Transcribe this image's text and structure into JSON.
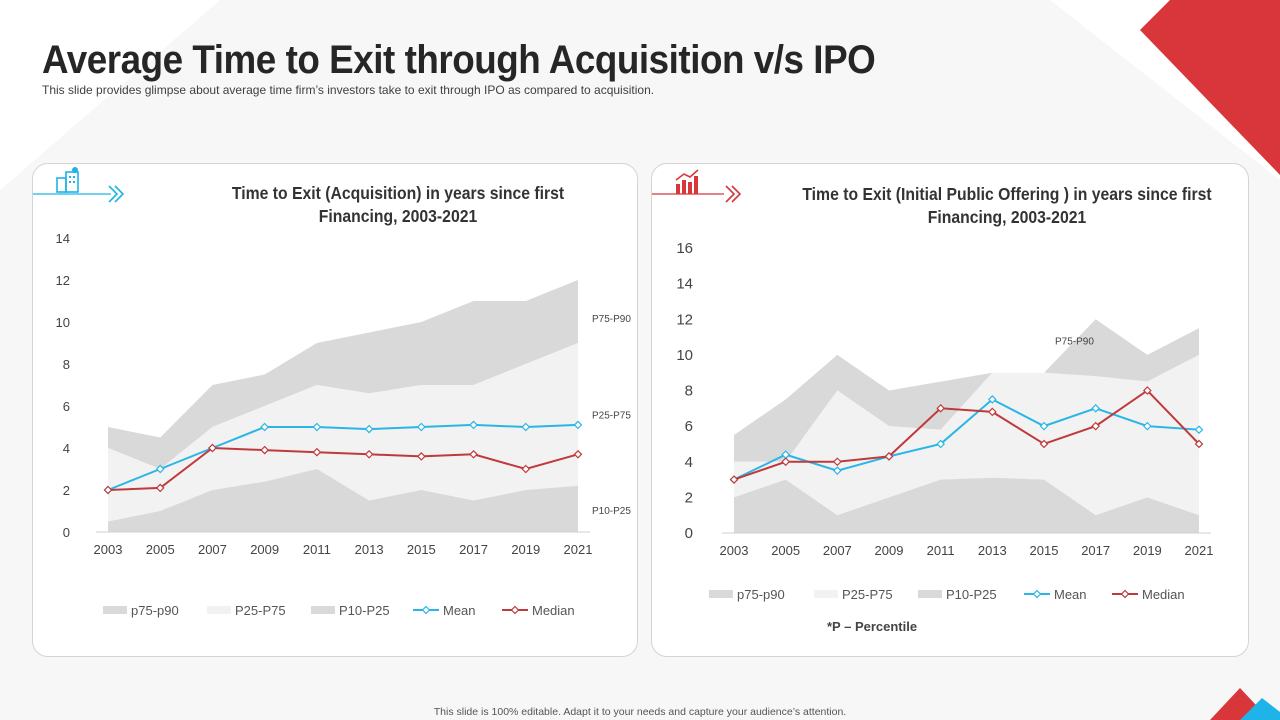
{
  "slide": {
    "title": "Average Time to Exit through Acquisition v/s IPO",
    "subtitle": "This slide provides glimpse about average time firm’s investors take to exit through IPO as compared to acquisition.",
    "footer": "This slide is 100% editable. Adapt it to your needs and capture your audience’s attention.",
    "percentile_note": "*P – Percentile"
  },
  "colors": {
    "accent_red": "#d9363b",
    "accent_blue": "#1fb4e8",
    "mean": "#29b6e6",
    "median": "#c0393b",
    "p75_p90": "#d9d9d9",
    "p25_p75": "#f2f2f2",
    "p10_p25": "#d9d9d9"
  },
  "icons": {
    "acquisition": "building-dollar-icon",
    "ipo": "growth-chart-icon",
    "arrow": "chevron-arrow-icon"
  },
  "chart_data": [
    {
      "type": "area",
      "title": "Time to Exit (Acquisition) in years since first Financing, 2003-2021",
      "x": [
        "2003",
        "2005",
        "2007",
        "2009",
        "2011",
        "2013",
        "2015",
        "2017",
        "2019",
        "2021"
      ],
      "ylim": [
        0,
        14
      ],
      "yticks": [
        0,
        2,
        4,
        6,
        8,
        10,
        12,
        14
      ],
      "series": [
        {
          "name": "p75-p90",
          "kind": "band",
          "lower": [
            4,
            3,
            5,
            6,
            7,
            6.6,
            7,
            7,
            8,
            9
          ],
          "upper": [
            5,
            4.5,
            7,
            7.5,
            9,
            9.5,
            10,
            11,
            11,
            12
          ]
        },
        {
          "name": "P25-P75",
          "kind": "band",
          "lower": [
            0.5,
            1,
            2,
            2.4,
            3,
            1.5,
            2,
            1.5,
            2,
            2.2
          ],
          "upper": [
            4,
            3,
            5,
            6,
            7,
            6.6,
            7,
            7,
            8,
            9
          ]
        },
        {
          "name": "P10-P25",
          "kind": "band",
          "lower": [
            0,
            0,
            0,
            0,
            0,
            0,
            0,
            0,
            0,
            0
          ],
          "upper": [
            0.5,
            1,
            2,
            2.4,
            3,
            1.5,
            2,
            1.5,
            2,
            2.2
          ]
        },
        {
          "name": "Mean",
          "kind": "line",
          "values": [
            2,
            3,
            4,
            5,
            5,
            4.9,
            5,
            5.1,
            5,
            5.1
          ]
        },
        {
          "name": "Median",
          "kind": "line",
          "values": [
            2,
            2.1,
            4,
            3.9,
            3.8,
            3.7,
            3.6,
            3.7,
            3,
            3.7
          ]
        }
      ],
      "band_labels": [
        {
          "text": "P75-P90",
          "y": 10.2
        },
        {
          "text": "P25-P75",
          "y": 5.6
        },
        {
          "text": "P10-P25",
          "y": 1.05
        }
      ],
      "legend": [
        "p75-p90",
        "P25-P75",
        "P10-P25",
        "Mean",
        "Median"
      ]
    },
    {
      "type": "area",
      "title": "Time to Exit (Initial Public Offering ) in years since first Financing, 2003-2021",
      "x": [
        "2003",
        "2005",
        "2007",
        "2009",
        "2011",
        "2013",
        "2015",
        "2017",
        "2019",
        "2021"
      ],
      "ylim": [
        0,
        16
      ],
      "yticks": [
        0,
        2,
        4,
        6,
        8,
        10,
        12,
        14,
        16
      ],
      "series": [
        {
          "name": "p75-p90",
          "kind": "band",
          "lower": [
            4,
            4,
            8,
            6,
            5.8,
            9,
            9,
            8.8,
            8.5,
            10
          ],
          "upper": [
            5.5,
            7.5,
            10,
            8,
            8.5,
            9,
            9,
            12,
            10,
            11.5
          ]
        },
        {
          "name": "P25-P75",
          "kind": "band",
          "lower": [
            2,
            3,
            1,
            2,
            3,
            3.1,
            3,
            1,
            2,
            1
          ],
          "upper": [
            4,
            4,
            8,
            6,
            5.8,
            9,
            9,
            8.8,
            8.5,
            10
          ]
        },
        {
          "name": "P10-P25",
          "kind": "band",
          "lower": [
            0,
            0,
            0,
            0,
            0,
            0,
            0,
            0,
            0,
            0
          ],
          "upper": [
            2,
            3,
            1,
            2,
            3,
            3.1,
            3,
            1,
            2,
            1
          ]
        },
        {
          "name": "Mean",
          "kind": "line",
          "values": [
            3,
            4.4,
            3.5,
            4.3,
            5,
            7.5,
            6,
            7,
            6,
            5.8
          ]
        },
        {
          "name": "Median",
          "kind": "line",
          "values": [
            3,
            4,
            4,
            4.3,
            7,
            6.8,
            5,
            6,
            8,
            5
          ]
        }
      ],
      "band_labels": [
        {
          "text": "P75-P90",
          "y": 10.8
        }
      ],
      "legend": [
        "p75-p90",
        "P25-P75",
        "P10-P25",
        "Mean",
        "Median"
      ]
    }
  ]
}
